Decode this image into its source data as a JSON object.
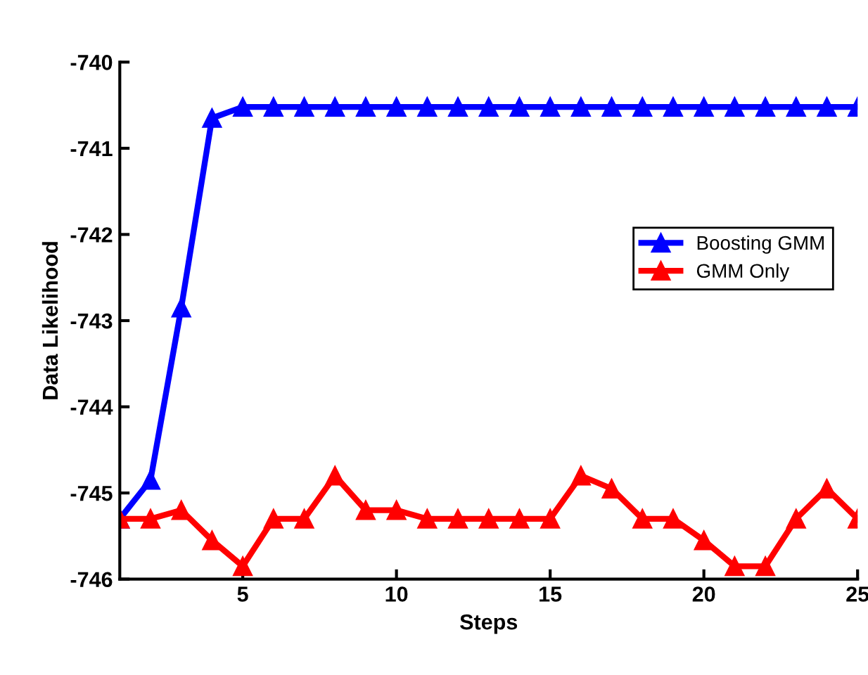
{
  "chart_data": {
    "type": "line",
    "xlabel": "Steps",
    "ylabel": "Data Likelihood",
    "x": [
      1,
      2,
      3,
      4,
      5,
      6,
      7,
      8,
      9,
      10,
      11,
      12,
      13,
      14,
      15,
      16,
      17,
      18,
      19,
      20,
      21,
      22,
      23,
      24,
      25
    ],
    "series": [
      {
        "name": "Boosting GMM",
        "color": "#0000ff",
        "values": [
          -745.3,
          -744.85,
          -742.85,
          -740.65,
          -740.52,
          -740.52,
          -740.52,
          -740.52,
          -740.52,
          -740.52,
          -740.52,
          -740.52,
          -740.52,
          -740.52,
          -740.52,
          -740.52,
          -740.52,
          -740.52,
          -740.52,
          -740.52,
          -740.52,
          -740.52,
          -740.52,
          -740.52,
          -740.52
        ]
      },
      {
        "name": "GMM Only",
        "color": "#ff0000",
        "values": [
          -745.3,
          -745.3,
          -745.2,
          -745.55,
          -745.85,
          -745.3,
          -745.3,
          -744.8,
          -745.2,
          -745.2,
          -745.3,
          -745.3,
          -745.3,
          -745.3,
          -745.3,
          -744.8,
          -744.95,
          -745.3,
          -745.3,
          -745.55,
          -745.85,
          -745.85,
          -745.3,
          -744.95,
          -745.3
        ]
      }
    ],
    "xlim": [
      1,
      25
    ],
    "xticks": [
      5,
      10,
      15,
      20,
      25
    ],
    "ylim": [
      -746,
      -740
    ],
    "yticks": [
      -746,
      -745,
      -744,
      -743,
      -742,
      -741,
      -740
    ],
    "marker": "triangle",
    "line_style": "solid",
    "legend": "right",
    "grid": false
  }
}
